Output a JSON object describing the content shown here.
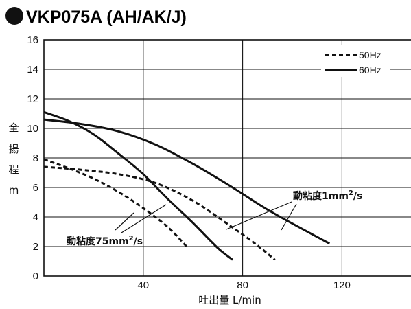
{
  "chart_data": {
    "type": "line",
    "title": "VKP075A (AH/AK/J)",
    "xlabel": "吐出量 L/min",
    "ylabel": "全揚程m",
    "xlim": [
      0,
      150
    ],
    "ylim": [
      0,
      16
    ],
    "x_ticks": [
      "40",
      "80",
      "120"
    ],
    "x_tick_values": [
      40,
      80,
      120
    ],
    "y_ticks": [
      "0",
      "2",
      "4",
      "6",
      "8",
      "10",
      "12",
      "14",
      "16"
    ],
    "y_tick_values": [
      0,
      2,
      4,
      6,
      8,
      10,
      12,
      14,
      16
    ],
    "grid": true,
    "legend_position": "top-right",
    "legend": [
      {
        "label": "50Hz",
        "style": "dashed"
      },
      {
        "label": "60Hz",
        "style": "solid"
      }
    ],
    "annotations": [
      {
        "text": "動粘度1mm",
        "sup": "2",
        "suffix": "/s"
      },
      {
        "text": "動粘度75mm",
        "sup": "2",
        "suffix": "/s"
      }
    ],
    "series": [
      {
        "frequency": "60Hz",
        "viscosity": "1mm2/s",
        "style": "solid",
        "x": [
          0,
          15,
          30,
          45,
          60,
          75,
          90,
          105,
          115
        ],
        "y": [
          10.6,
          10.3,
          9.8,
          8.9,
          7.6,
          6.1,
          4.5,
          3.1,
          2.2
        ]
      },
      {
        "frequency": "60Hz",
        "viscosity": "75mm2/s",
        "style": "solid",
        "x": [
          0,
          10,
          20,
          30,
          40,
          50,
          60,
          70,
          76
        ],
        "y": [
          11.1,
          10.5,
          9.6,
          8.3,
          6.9,
          5.2,
          3.6,
          1.9,
          1.1
        ]
      },
      {
        "frequency": "50Hz",
        "viscosity": "1mm2/s",
        "style": "dashed",
        "x": [
          0,
          15,
          30,
          45,
          60,
          75,
          85,
          93
        ],
        "y": [
          7.4,
          7.2,
          6.9,
          6.3,
          5.1,
          3.4,
          2.2,
          1.1
        ]
      },
      {
        "frequency": "50Hz",
        "viscosity": "75mm2/s",
        "style": "dashed",
        "x": [
          0,
          10,
          20,
          30,
          40,
          50,
          58
        ],
        "y": [
          7.9,
          7.3,
          6.6,
          5.7,
          4.6,
          3.3,
          1.9
        ]
      }
    ]
  }
}
